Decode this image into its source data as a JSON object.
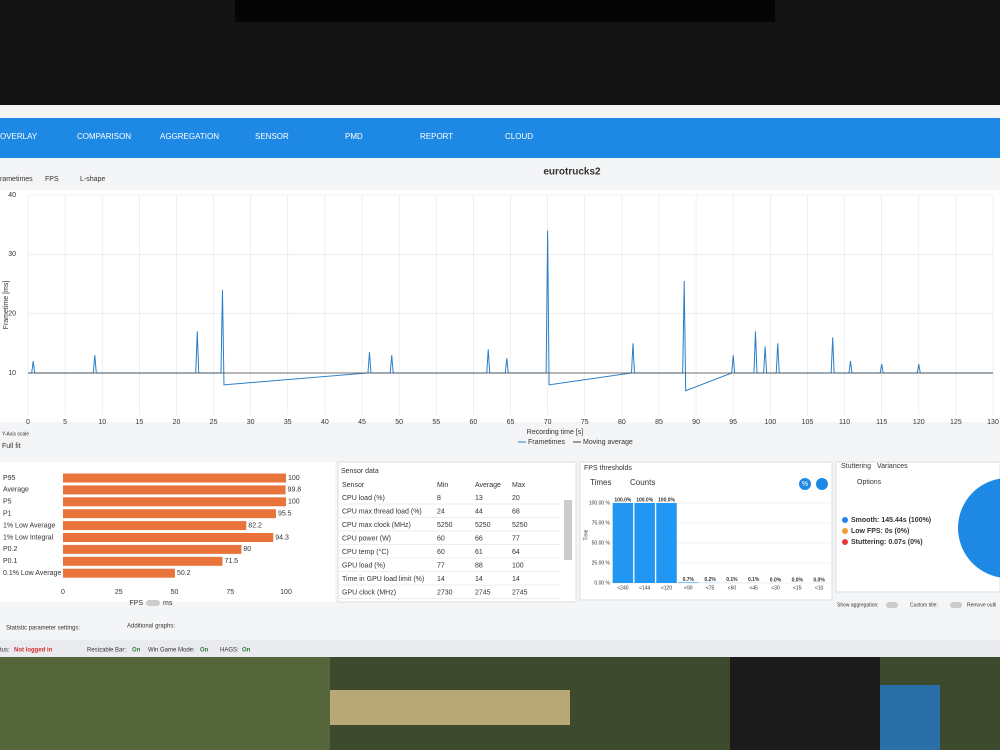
{
  "nav": {
    "tabs": [
      "OVERLAY",
      "COMPARISON",
      "AGGREGATION",
      "SENSOR",
      "PMD",
      "REPORT",
      "CLOUD"
    ]
  },
  "subtabs": [
    "rametimes",
    "FPS",
    "L-shape"
  ],
  "y_axis_scale": {
    "label": "Y-Axis scale",
    "value": "Full fit"
  },
  "sensor": {
    "title": "Sensor data",
    "columns": [
      "Sensor",
      "Min",
      "Average",
      "Max"
    ],
    "rows": [
      [
        "CPU load (%)",
        8,
        13,
        20
      ],
      [
        "CPU max thread load (%)",
        24,
        44,
        68
      ],
      [
        "CPU max clock (MHz)",
        5250,
        5250,
        5250
      ],
      [
        "CPU power (W)",
        60,
        66,
        77
      ],
      [
        "CPU temp (°C)",
        60,
        61,
        64
      ],
      [
        "GPU load (%)",
        77,
        88,
        100
      ],
      [
        "Time in GPU load limit (%)",
        14,
        14,
        14
      ],
      [
        "GPU clock (MHz)",
        2730,
        2745,
        2745
      ]
    ]
  },
  "thresholds": {
    "title": "FPS thresholds",
    "tabs": [
      "Times",
      "Counts"
    ],
    "percent_button": "%"
  },
  "stutter": {
    "tabs": [
      "Stuttering",
      "Variances"
    ],
    "options": "Options"
  },
  "bottom": {
    "show_aggregation": "Show aggregation:",
    "custom_title": "Custom title:",
    "remove_outliers": "Remove outli",
    "statistic_settings": "Statistic parameter settings:",
    "additional_graphs": "Additional graphs:"
  },
  "status": {
    "status_label": "tus:",
    "status_value": "Not logged in",
    "rebar_label": "Resizable Bar:",
    "rebar_value": "On",
    "gamemode_label": "Win Game Mode:",
    "gamemode_value": "On",
    "hags_label": "HAGS:",
    "hags_value": "On"
  },
  "chart_data": [
    {
      "type": "line",
      "title": "eurotrucks2",
      "xlabel": "Recording time [s]",
      "ylabel": "Frametime [ms]",
      "xlim": [
        0,
        130
      ],
      "ylim": [
        3,
        40
      ],
      "xticks": [
        0,
        5,
        10,
        15,
        20,
        25,
        30,
        35,
        40,
        45,
        50,
        55,
        60,
        65,
        70,
        75,
        80,
        85,
        90,
        95,
        100,
        105,
        110,
        115,
        120,
        125,
        130
      ],
      "yticks": [
        10,
        20,
        30,
        40
      ],
      "grid": true,
      "series": [
        {
          "name": "Frametimes",
          "color": "#2a7fc9",
          "x": [
            0,
            0.5,
            0.7,
            0.9,
            8.8,
            9,
            9.2,
            22.6,
            22.8,
            23,
            26,
            26.2,
            26.4,
            45.8,
            46,
            46.2,
            48.8,
            49,
            49.2,
            61.8,
            62,
            62.2,
            64.3,
            64.5,
            64.7,
            69.8,
            70,
            70.2,
            81.3,
            81.5,
            81.7,
            88.2,
            88.4,
            88.6,
            94.8,
            95,
            95.2,
            97.8,
            98,
            98.2,
            99.1,
            99.3,
            99.5,
            100.8,
            101,
            101.2,
            108.2,
            108.4,
            108.6,
            110.6,
            110.8,
            111,
            114.8,
            115,
            115.2,
            119.8,
            120,
            120.2,
            130
          ],
          "values": [
            10,
            10,
            12,
            10,
            10,
            13,
            10,
            10,
            17,
            10,
            10,
            24,
            8,
            10,
            13.5,
            10,
            10,
            13,
            10,
            10,
            14,
            10,
            10,
            12.5,
            10,
            10,
            34,
            8,
            10,
            15,
            10,
            10,
            25.5,
            7,
            10,
            13,
            10,
            10,
            17,
            10,
            10,
            14.5,
            10,
            10,
            15,
            10,
            10,
            16,
            10,
            10,
            12,
            10,
            10,
            11.5,
            10,
            10,
            11.5,
            10,
            10
          ]
        },
        {
          "name": "Moving average",
          "color": "#444444",
          "x": [
            0,
            130
          ],
          "values": [
            10,
            10
          ]
        }
      ]
    },
    {
      "type": "hbar",
      "categories": [
        "P95",
        "Average",
        "P5",
        "P1",
        "1% Low Average",
        "1% Low Integral",
        "P0.2",
        "P0.1",
        "0.1% Low Average"
      ],
      "values": [
        100,
        99.8,
        100,
        95.5,
        82.2,
        94.3,
        80,
        71.5,
        50.2
      ],
      "color": "#e8743b",
      "xlim": [
        0,
        100
      ],
      "xticks": [
        0,
        25,
        50,
        75,
        100
      ],
      "xlabel": "FPS",
      "toggle_label": "ms"
    },
    {
      "type": "bar",
      "categories": [
        "<240",
        "<144",
        "<120",
        "<90",
        "<75",
        "<60",
        "<45",
        "<30",
        "<15",
        "<10"
      ],
      "values": [
        100,
        100,
        100,
        0.7,
        0.2,
        0.1,
        0.1,
        0,
        0,
        0
      ],
      "value_labels": [
        "100.0%",
        "100.0%",
        "100.0%",
        "0.7%",
        "0.2%",
        "0.1%",
        "0.1%",
        "0.0%",
        "0.0%",
        "0.0%"
      ],
      "color": "#2196f3",
      "ylabel": "Time",
      "ylim": [
        0,
        100
      ],
      "yticks": [
        {
          "value": 0,
          "label": "0.00 %"
        },
        {
          "value": 25,
          "label": "25.00 %"
        },
        {
          "value": 50,
          "label": "50.00 %"
        },
        {
          "value": 75,
          "label": "75.00 %"
        },
        {
          "value": 100,
          "label": "100.00 %"
        }
      ]
    },
    {
      "type": "pie",
      "labels": [
        "Smooth: 145.44s (100%)",
        "Low FPS: 0s (0%)",
        "Stuttering: 0.07s (0%)"
      ],
      "values": [
        145.44,
        0,
        0.07
      ],
      "colors": [
        "#1e88e5",
        "#f0a030",
        "#e53935"
      ]
    }
  ]
}
